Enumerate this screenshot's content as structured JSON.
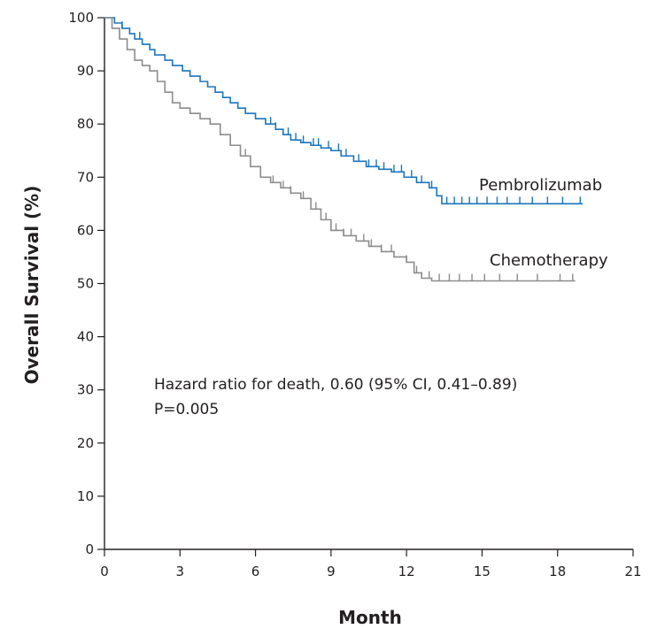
{
  "chart_data": {
    "type": "line",
    "subtype": "kaplan-meier",
    "title": "",
    "xlabel": "Month",
    "ylabel": "Overall Survival (%)",
    "xlim": [
      0,
      21
    ],
    "ylim": [
      0,
      100
    ],
    "xticks": [
      0,
      3,
      6,
      9,
      12,
      15,
      18,
      21
    ],
    "yticks": [
      0,
      10,
      20,
      30,
      40,
      50,
      60,
      70,
      80,
      90,
      100
    ],
    "grid": false,
    "legend": "inline labels at line ends",
    "series": [
      {
        "name": "Pembrolizumab",
        "color": "#1b75bc",
        "x": [
          0,
          0.4,
          0.7,
          1.0,
          1.2,
          1.5,
          1.8,
          2.0,
          2.4,
          2.7,
          3.1,
          3.4,
          3.8,
          4.1,
          4.4,
          4.7,
          5.0,
          5.3,
          5.6,
          6.0,
          6.4,
          6.8,
          7.1,
          7.4,
          7.8,
          8.2,
          8.6,
          9.0,
          9.4,
          9.9,
          10.4,
          10.9,
          11.4,
          11.9,
          12.4,
          12.9,
          13.2,
          13.4,
          19.0
        ],
        "y": [
          100,
          99,
          98,
          97,
          96,
          95,
          94,
          93,
          92,
          91,
          90,
          89,
          88,
          87,
          86,
          85,
          84,
          83,
          82,
          81,
          80,
          79,
          78,
          77,
          76.5,
          76,
          75.5,
          75,
          74,
          73,
          72,
          71.5,
          71,
          70,
          69,
          68,
          66.5,
          65,
          65
        ],
        "censor_x": [
          0.7,
          1.4,
          6.6,
          6.8,
          7.3,
          7.6,
          7.9,
          8.3,
          8.5,
          8.9,
          9.3,
          9.6,
          10.1,
          10.5,
          10.8,
          11.1,
          11.5,
          11.8,
          12.2,
          12.6,
          13.0,
          13.6,
          13.9,
          14.2,
          14.5,
          14.8,
          15.2,
          15.6,
          16.0,
          16.5,
          17.0,
          17.6,
          18.2,
          18.9
        ]
      },
      {
        "name": "Chemotherapy",
        "color": "#8c8c8c",
        "x": [
          0,
          0.3,
          0.6,
          0.9,
          1.2,
          1.5,
          1.8,
          2.1,
          2.4,
          2.7,
          3.0,
          3.4,
          3.8,
          4.2,
          4.6,
          5.0,
          5.4,
          5.8,
          6.2,
          6.6,
          7.0,
          7.4,
          7.8,
          8.2,
          8.6,
          9.0,
          9.5,
          10.0,
          10.5,
          11.0,
          11.5,
          12.0,
          12.3,
          12.6,
          13.0,
          18.7
        ],
        "y": [
          100,
          98,
          96,
          94,
          92,
          91,
          90,
          88,
          86,
          84,
          83,
          82,
          81,
          80,
          78,
          76,
          74,
          72,
          70,
          69,
          68,
          67,
          66,
          64,
          62,
          60,
          59,
          58,
          57,
          56,
          55,
          54,
          52,
          51,
          50.5,
          50.5
        ],
        "censor_x": [
          5.6,
          6.7,
          7.1,
          7.4,
          7.9,
          8.4,
          8.8,
          9.2,
          9.5,
          9.8,
          10.3,
          10.6,
          11.0,
          11.4,
          12.0,
          12.4,
          12.9,
          13.3,
          13.7,
          14.1,
          14.6,
          15.1,
          15.7,
          16.4,
          17.2,
          18.1,
          18.6
        ]
      }
    ],
    "annotations": [
      "Hazard ratio for death, 0.60 (95% CI, 0.41–0.89)",
      "P=0.005"
    ]
  }
}
